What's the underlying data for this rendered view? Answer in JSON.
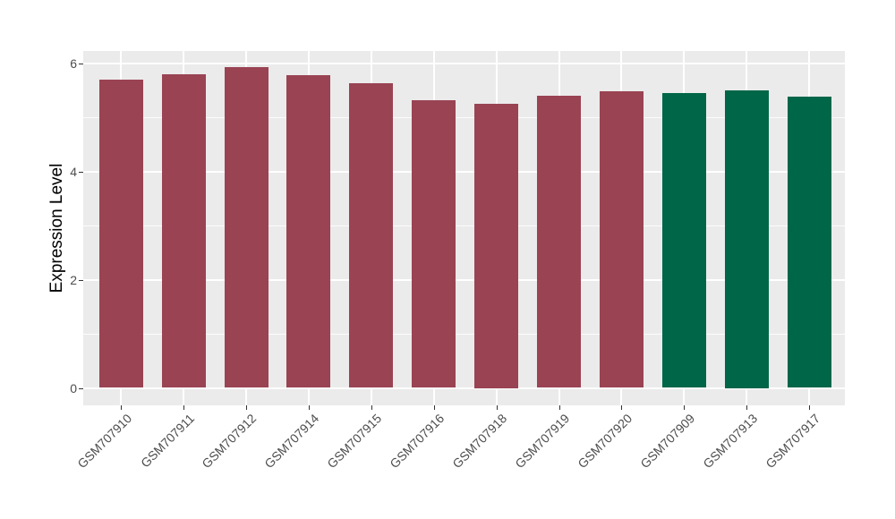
{
  "chart_data": {
    "type": "bar",
    "title": "",
    "xlabel": "",
    "ylabel": "Expression Level",
    "categories": [
      "GSM707910",
      "GSM707911",
      "GSM707912",
      "GSM707914",
      "GSM707915",
      "GSM707916",
      "GSM707918",
      "GSM707919",
      "GSM707920",
      "GSM707909",
      "GSM707913",
      "GSM707917"
    ],
    "values": [
      5.69,
      5.8,
      5.93,
      5.78,
      5.63,
      5.31,
      5.25,
      5.39,
      5.48,
      5.45,
      5.5,
      5.38
    ],
    "bar_colors": [
      "#9A4353",
      "#9A4353",
      "#9A4353",
      "#9A4353",
      "#9A4353",
      "#9A4353",
      "#9A4353",
      "#9A4353",
      "#9A4353",
      "#006648",
      "#006648",
      "#006648"
    ],
    "groups": [
      {
        "name": "group-maroon",
        "color": "#9A4353",
        "categories": [
          "GSM707910",
          "GSM707911",
          "GSM707912",
          "GSM707914",
          "GSM707915",
          "GSM707916",
          "GSM707918",
          "GSM707919",
          "GSM707920"
        ]
      },
      {
        "name": "group-green",
        "color": "#006648",
        "categories": [
          "GSM707909",
          "GSM707913",
          "GSM707917"
        ]
      }
    ],
    "ylim": [
      -0.3,
      6.22
    ],
    "yticks": [
      0,
      2,
      4,
      6
    ],
    "yticks_minor": [
      1,
      3,
      5
    ],
    "x_label_angle": 45,
    "legend": "none",
    "panel_background": "#EBEBEB",
    "grid_color": "#FFFFFF",
    "tick_label_color": "#4D4D4D"
  }
}
